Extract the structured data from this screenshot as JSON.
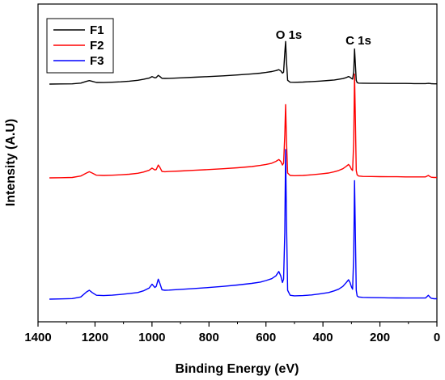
{
  "chart_data": {
    "type": "line",
    "title": "",
    "xlabel": "Binding Energy (eV)",
    "ylabel": "Intensity (A.U)",
    "xlim": [
      1400,
      0
    ],
    "x_reversed": true,
    "x_ticks": [
      1400,
      1200,
      1000,
      800,
      600,
      400,
      200,
      0
    ],
    "y_ticks": [],
    "grid": false,
    "legend_position": "top-left",
    "annotations": [
      {
        "text": "O 1s",
        "x": 531
      },
      {
        "text": "C 1s",
        "x": 285
      }
    ],
    "x": [
      1360,
      1320,
      1280,
      1250,
      1230,
      1220,
      1210,
      1195,
      1170,
      1140,
      1110,
      1080,
      1050,
      1030,
      1010,
      1000,
      990,
      985,
      978,
      972,
      965,
      955,
      940,
      900,
      850,
      800,
      750,
      700,
      650,
      620,
      600,
      580,
      565,
      555,
      548,
      542,
      538,
      534,
      531,
      528,
      524,
      515,
      500,
      470,
      440,
      410,
      380,
      360,
      345,
      330,
      318,
      310,
      305,
      300,
      296,
      292,
      289,
      286,
      283,
      280,
      275,
      260,
      230,
      200,
      170,
      140,
      110,
      80,
      60,
      40,
      30,
      25,
      20,
      10,
      0
    ],
    "series": [
      {
        "name": "F1",
        "color": "#000000",
        "values": [
          0,
          0.1,
          0.2,
          0.8,
          2.2,
          2.8,
          2.2,
          1.3,
          1.2,
          1.5,
          1.8,
          2.3,
          3.0,
          3.8,
          4.8,
          6.0,
          5.0,
          5.2,
          7.0,
          6.0,
          4.6,
          4.5,
          4.6,
          5.0,
          5.5,
          6.0,
          6.6,
          7.3,
          8.1,
          8.7,
          9.3,
          10.0,
          10.8,
          11.5,
          10.5,
          8.8,
          9.5,
          25.0,
          34.0,
          18.0,
          3.0,
          1.5,
          1.4,
          1.6,
          2.0,
          2.4,
          2.9,
          3.3,
          3.8,
          4.4,
          5.2,
          6.0,
          5.5,
          4.5,
          4.0,
          10.0,
          28.0,
          15.0,
          3.0,
          1.2,
          0.8,
          0.7,
          0.6,
          0.6,
          0.5,
          0.5,
          0.5,
          0.4,
          0.4,
          0.4,
          0.6,
          0.5,
          0.3,
          0.2,
          0.2
        ]
      },
      {
        "name": "F2",
        "color": "#ff0000",
        "values": [
          0,
          0.1,
          0.3,
          1.5,
          4.0,
          5.0,
          4.0,
          2.2,
          2.0,
          2.2,
          2.5,
          3.0,
          3.8,
          4.8,
          6.2,
          8.0,
          6.5,
          6.8,
          10.5,
          8.5,
          5.2,
          5.0,
          5.2,
          5.6,
          6.2,
          6.8,
          7.5,
          8.3,
          9.3,
          10.2,
          11.0,
          12.0,
          13.5,
          15.0,
          13.5,
          10.5,
          12.0,
          35.0,
          60.0,
          30.0,
          4.0,
          2.0,
          1.8,
          2.0,
          2.5,
          3.2,
          4.0,
          5.0,
          6.0,
          7.5,
          9.5,
          11.0,
          9.5,
          7.0,
          6.0,
          30.0,
          85.0,
          45.0,
          6.0,
          2.5,
          1.5,
          1.2,
          1.1,
          1.0,
          0.9,
          0.9,
          0.8,
          0.8,
          0.8,
          0.8,
          2.0,
          1.2,
          0.5,
          0.3,
          0.3
        ]
      },
      {
        "name": "F3",
        "color": "#0000ff",
        "values": [
          0,
          0.2,
          0.5,
          2.0,
          6.5,
          8.0,
          6.0,
          3.5,
          3.2,
          3.6,
          4.2,
          5.0,
          6.0,
          7.5,
          10.0,
          13.5,
          10.5,
          11.5,
          18.0,
          14.0,
          8.5,
          8.0,
          8.2,
          8.8,
          9.6,
          10.5,
          11.5,
          12.8,
          14.2,
          15.4,
          16.8,
          18.5,
          21.0,
          25.0,
          21.0,
          15.0,
          18.0,
          60.0,
          135.0,
          70.0,
          8.0,
          3.5,
          3.0,
          3.2,
          3.8,
          4.8,
          6.0,
          7.5,
          9.0,
          11.5,
          15.0,
          17.5,
          15.0,
          11.0,
          9.0,
          40.0,
          107.0,
          55.0,
          8.0,
          3.0,
          2.0,
          1.6,
          1.4,
          1.3,
          1.2,
          1.1,
          1.0,
          1.0,
          1.0,
          1.0,
          3.5,
          2.0,
          0.8,
          0.4,
          0.4
        ]
      }
    ]
  }
}
